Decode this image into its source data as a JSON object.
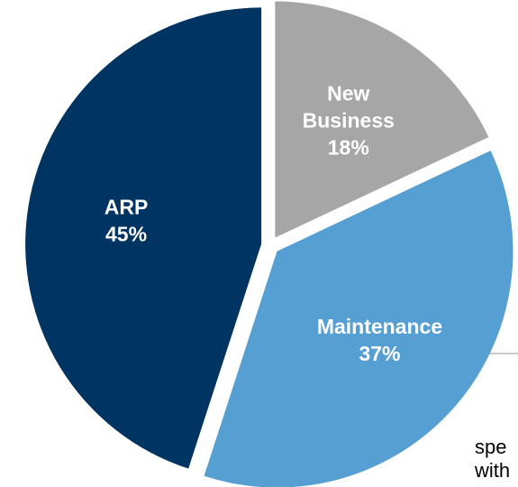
{
  "chart_data": {
    "type": "pie",
    "categories": [
      "New Business",
      "Maintenance",
      "ARP"
    ],
    "values": [
      18,
      37,
      45
    ],
    "value_labels": [
      "18%",
      "37%",
      "45%"
    ],
    "colors": [
      "#a6a6a6",
      "#559fd3",
      "#003462"
    ],
    "annotations": [
      "spe",
      "with"
    ]
  }
}
